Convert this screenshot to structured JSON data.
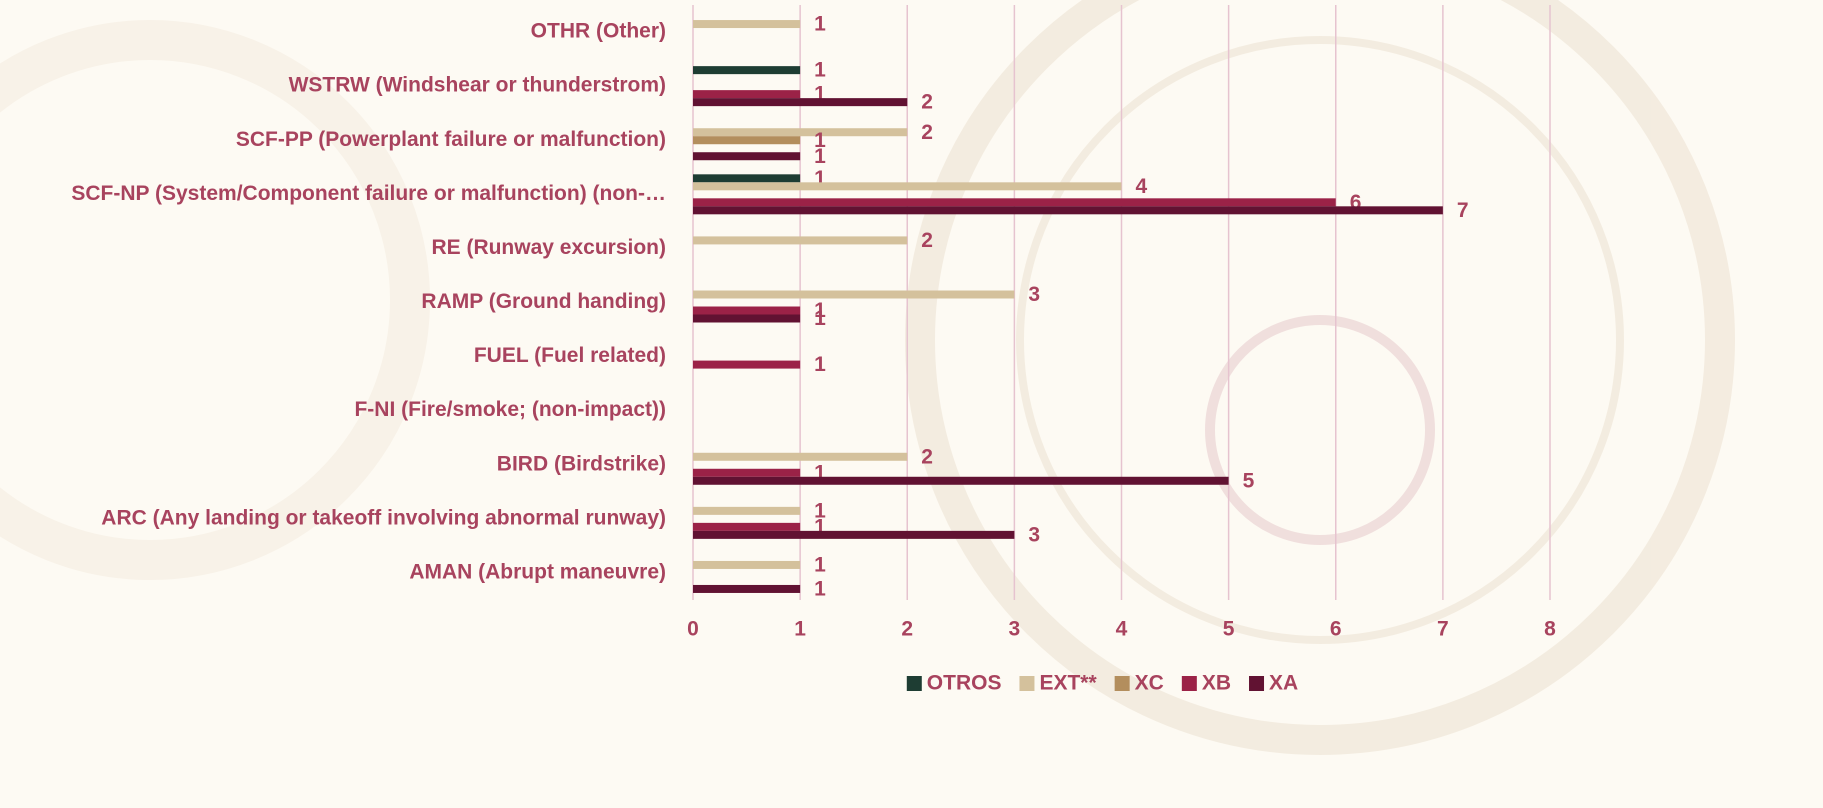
{
  "chart_data": {
    "type": "bar",
    "orientation": "horizontal",
    "categories": [
      "OTHR (Other)",
      "WSTRW (Windshear or thunderstrom)",
      "SCF-PP (Powerplant failure or malfunction)",
      "SCF-NP (System/Component failure or malfunction) (non-…",
      "RE (Runway excursion)",
      "RAMP (Ground handing)",
      "FUEL (Fuel related)",
      "F-NI (Fire/smoke; (non-impact))",
      "BIRD (Birdstrike)",
      "ARC (Any landing or takeoff involving abnormal runway)",
      "AMAN (Abrupt maneuvre)"
    ],
    "series": [
      {
        "name": "OTROS",
        "color": "#1e3d33",
        "values": [
          null,
          1,
          null,
          1,
          null,
          null,
          null,
          null,
          null,
          null,
          null
        ]
      },
      {
        "name": "EXT**",
        "color": "#d4c19c",
        "values": [
          1,
          null,
          2,
          4,
          2,
          3,
          null,
          null,
          2,
          1,
          1
        ]
      },
      {
        "name": "XC",
        "color": "#b38e5d",
        "values": [
          null,
          null,
          1,
          null,
          null,
          null,
          null,
          null,
          null,
          null,
          null
        ]
      },
      {
        "name": "XB",
        "color": "#9b2247",
        "values": [
          null,
          1,
          null,
          6,
          null,
          1,
          1,
          null,
          1,
          1,
          null
        ]
      },
      {
        "name": "XA",
        "color": "#611232",
        "values": [
          null,
          2,
          1,
          7,
          null,
          1,
          null,
          null,
          5,
          3,
          1
        ]
      }
    ],
    "xlim": [
      0,
      8
    ],
    "xticks": [
      0,
      1,
      2,
      3,
      4,
      5,
      6,
      7,
      8
    ],
    "grid": true,
    "legend": "bottom"
  }
}
